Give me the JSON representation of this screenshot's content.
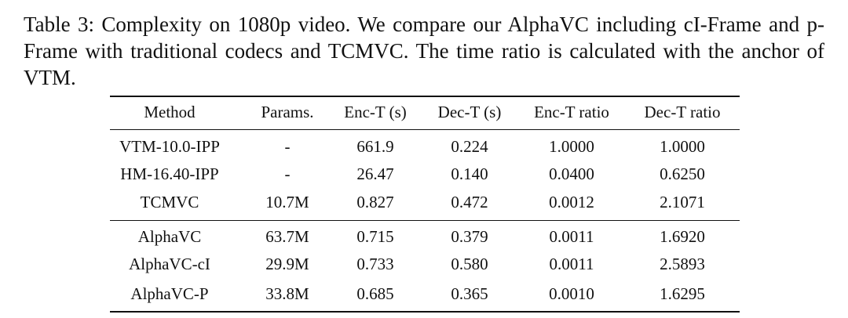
{
  "caption": "Table 3: Complexity on 1080p video. We compare our AlphaVC including cI-Frame and p-Frame with traditional codecs and TCMVC. The time ratio is calculated with the anchor of VTM.",
  "table": {
    "columns": [
      "Method",
      "Params.",
      "Enc-T (s)",
      "Dec-T (s)",
      "Enc-T ratio",
      "Dec-T ratio"
    ],
    "groups": [
      [
        [
          "VTM-10.0-IPP",
          "-",
          "661.9",
          "0.224",
          "1.0000",
          "1.0000"
        ],
        [
          "HM-16.40-IPP",
          "-",
          "26.47",
          "0.140",
          "0.0400",
          "0.6250"
        ],
        [
          "TCMVC",
          "10.7M",
          "0.827",
          "0.472",
          "0.0012",
          "2.1071"
        ]
      ],
      [
        [
          "AlphaVC",
          "63.7M",
          "0.715",
          "0.379",
          "0.0011",
          "1.6920"
        ],
        [
          "AlphaVC-cI",
          "29.9M",
          "0.733",
          "0.580",
          "0.0011",
          "2.5893"
        ],
        [
          "AlphaVC-P",
          "33.8M",
          "0.685",
          "0.365",
          "0.0010",
          "1.6295"
        ]
      ]
    ]
  }
}
